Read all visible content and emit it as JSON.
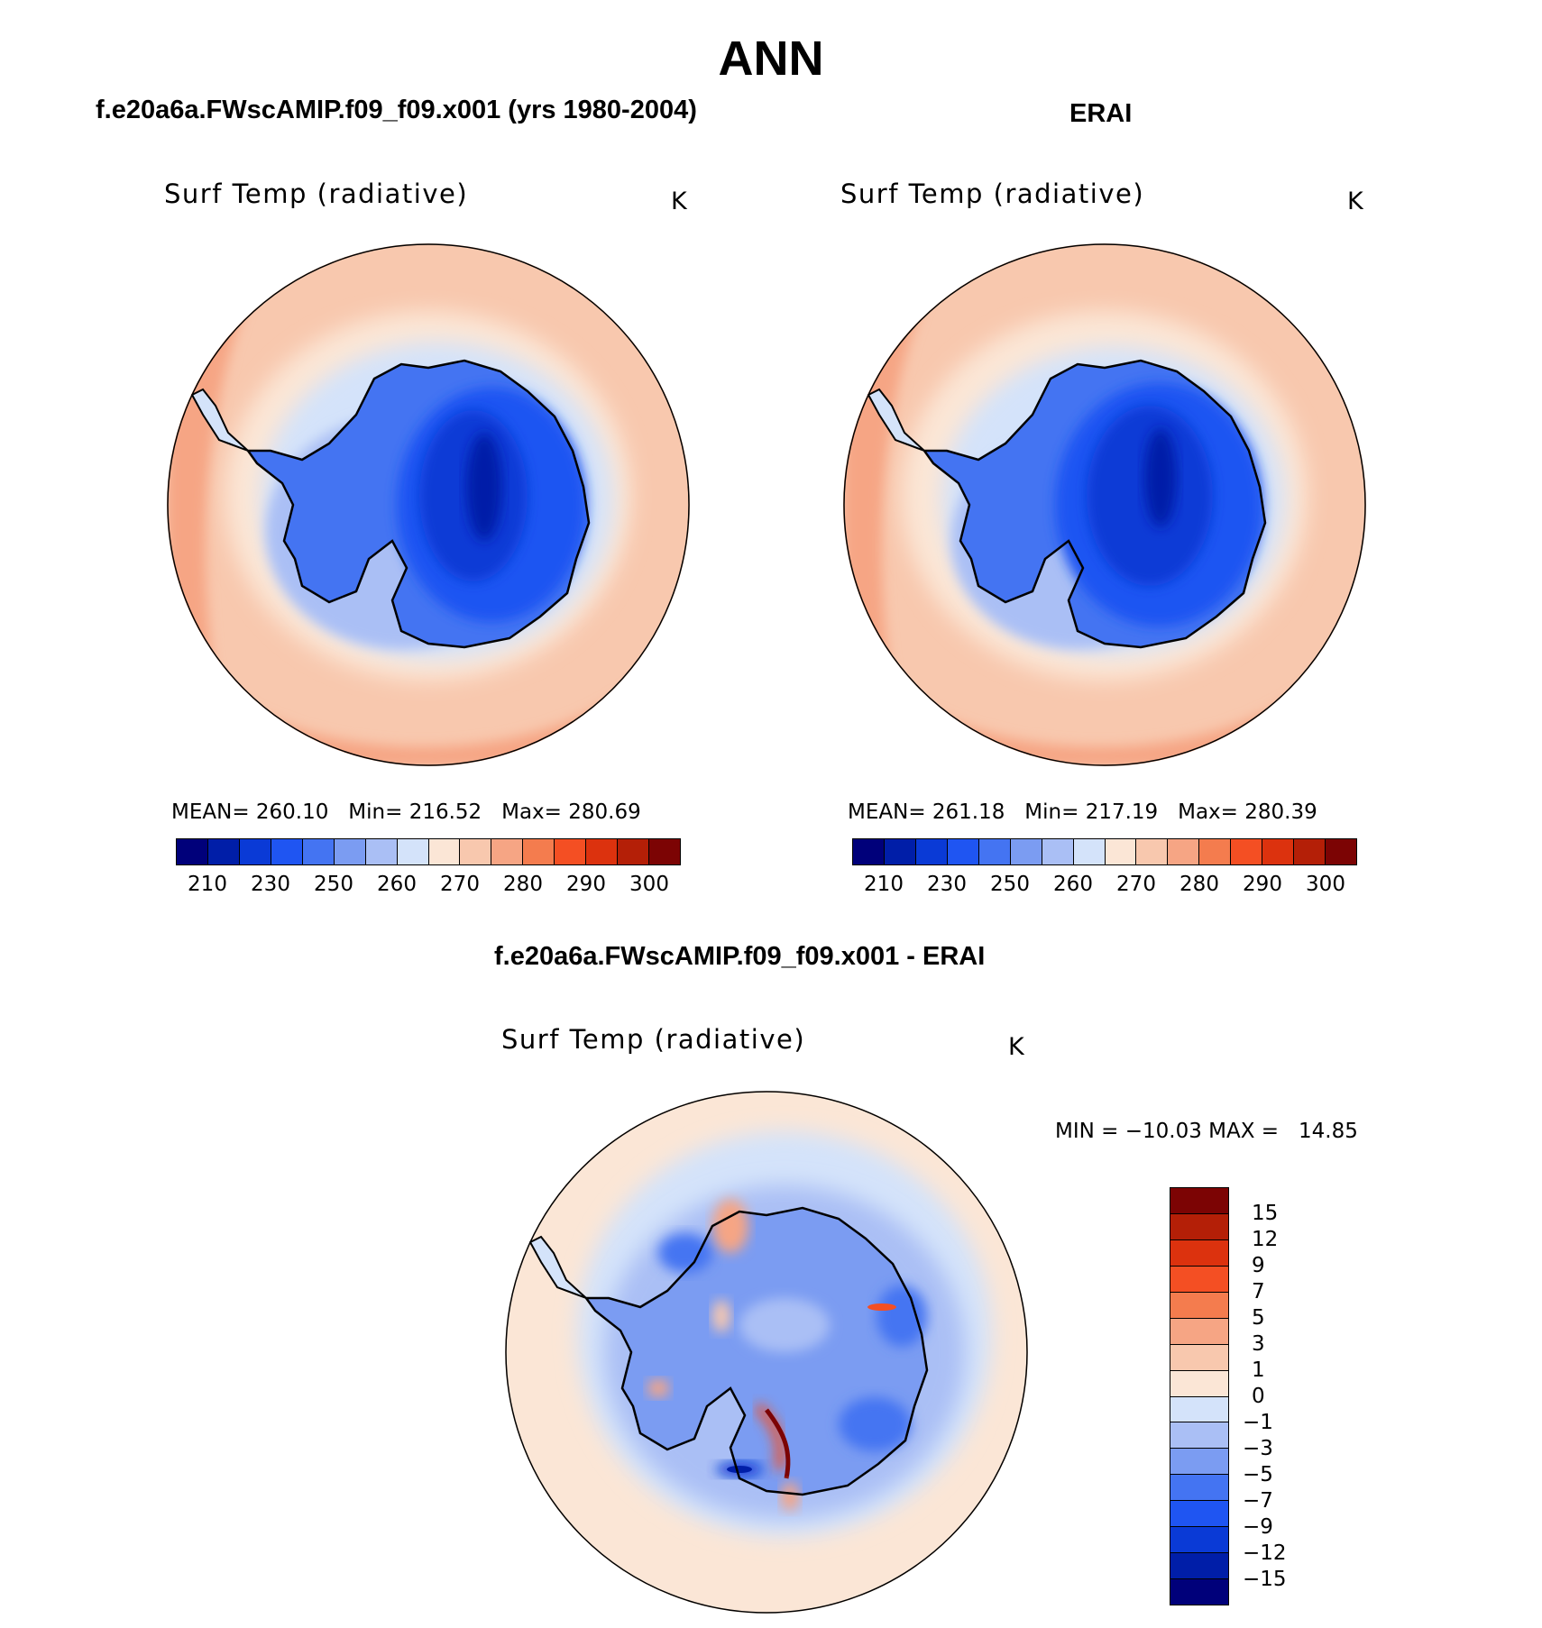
{
  "figure": {
    "title": "ANN"
  },
  "panels": {
    "model": {
      "case_title": "f.e20a6a.FWscAMIP.f09_f09.x001 (yrs 1980-2004)",
      "plot_title": "Surf Temp (radiative)",
      "units": "K",
      "stats": "MEAN= 260.10   Min= 216.52   Max= 280.69"
    },
    "obs": {
      "case_title": "ERAI",
      "plot_title": "Surf Temp (radiative)",
      "units": "K",
      "stats": "MEAN= 261.18   Min= 217.19   Max= 280.39"
    },
    "diff": {
      "case_title": "f.e20a6a.FWscAMIP.f09_f09.x001 - ERAI",
      "plot_title": "Surf Temp (radiative)",
      "units": "K",
      "stats": "MIN = −10.03 MAX =   14.85"
    }
  },
  "colorbar_abs": {
    "colors": [
      "#00007a",
      "#001ea8",
      "#0a3ad6",
      "#1f55f2",
      "#4474f2",
      "#7b9cf2",
      "#aabff5",
      "#d4e3fa",
      "#fbe6d6",
      "#f8c8ae",
      "#f6a584",
      "#f47c4e",
      "#f44f23",
      "#dc320e",
      "#b41f07",
      "#7c0404"
    ],
    "labels": [
      "210",
      "230",
      "250",
      "260",
      "270",
      "280",
      "290",
      "300"
    ]
  },
  "colorbar_diff": {
    "colors": [
      "#7c0404",
      "#b41f07",
      "#dc320e",
      "#f44f23",
      "#f47c4e",
      "#f6a584",
      "#f8c8ae",
      "#fbe6d6",
      "#d4e3fa",
      "#aabff5",
      "#7b9cf2",
      "#4474f2",
      "#1f55f2",
      "#0a3ad6",
      "#001ea8",
      "#00007a"
    ],
    "labels": [
      "15",
      "12",
      "9",
      "7",
      "5",
      "3",
      "1",
      "0",
      "−1",
      "−3",
      "−5",
      "−7",
      "−9",
      "−12",
      "−15"
    ]
  },
  "chart_data": [
    {
      "type": "heatmap",
      "title": "Surf Temp (radiative)",
      "subtitle": "f.e20a6a.FWscAMIP.f09_f09.x001 (yrs 1980-2004)",
      "units": "K",
      "projection": "south polar stereographic",
      "levels": [
        210,
        220,
        230,
        240,
        250,
        255,
        260,
        265,
        270,
        275,
        280,
        285,
        290,
        295,
        300
      ],
      "mean": 260.1,
      "min": 216.52,
      "max": 280.69
    },
    {
      "type": "heatmap",
      "title": "Surf Temp (radiative)",
      "subtitle": "ERAI",
      "units": "K",
      "projection": "south polar stereographic",
      "levels": [
        210,
        220,
        230,
        240,
        250,
        255,
        260,
        265,
        270,
        275,
        280,
        285,
        290,
        295,
        300
      ],
      "mean": 261.18,
      "min": 217.19,
      "max": 280.39
    },
    {
      "type": "heatmap",
      "title": "Surf Temp (radiative)",
      "subtitle": "f.e20a6a.FWscAMIP.f09_f09.x001 - ERAI",
      "units": "K",
      "projection": "south polar stereographic",
      "levels": [
        -15,
        -12,
        -9,
        -7,
        -5,
        -3,
        -1,
        0,
        1,
        3,
        5,
        7,
        9,
        12,
        15
      ],
      "min": -10.03,
      "max": 14.85
    }
  ]
}
